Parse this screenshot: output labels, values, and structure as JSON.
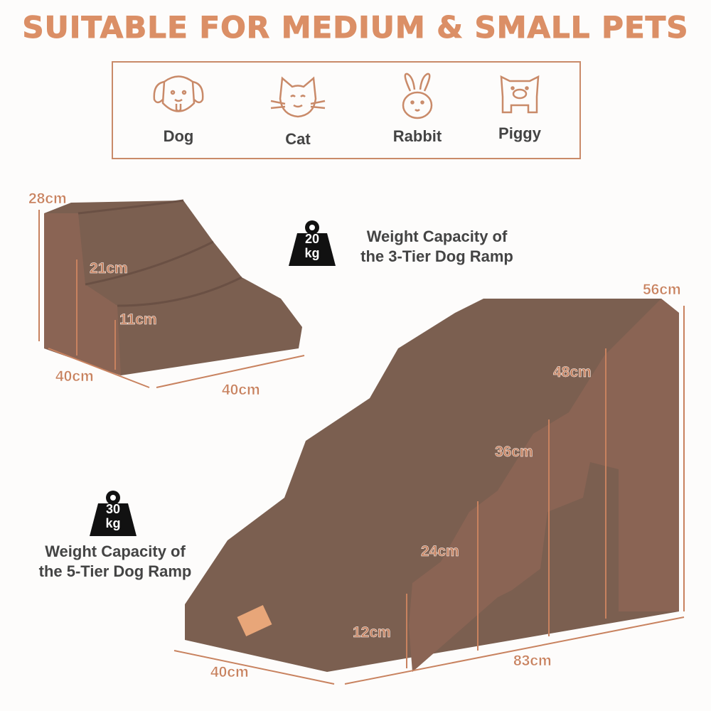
{
  "title": "SUITABLE FOR MEDIUM & SMALL PETS",
  "pets": [
    {
      "label": "Dog",
      "icon": "dog-icon"
    },
    {
      "label": "Cat",
      "icon": "cat-icon"
    },
    {
      "label": "Rabbit",
      "icon": "rabbit-icon"
    },
    {
      "label": "Piggy",
      "icon": "pig-icon"
    }
  ],
  "small_ramp": {
    "height_total": "28cm",
    "step2": "21cm",
    "step1": "11cm",
    "depth": "40cm",
    "width": "40cm",
    "weight": "20",
    "unit": "kg",
    "capacity_line1": "Weight Capacity of",
    "capacity_line2": "the 3-Tier Dog Ramp"
  },
  "large_ramp": {
    "height_total": "56cm",
    "step4": "48cm",
    "step3": "36cm",
    "step2": "24cm",
    "step1": "12cm",
    "depth": "40cm",
    "length": "83cm",
    "weight": "30",
    "unit": "kg",
    "capacity_line1": "Weight Capacity of",
    "capacity_line2": "the 5-Tier Dog Ramp"
  },
  "colors": {
    "accent": "#db8f66",
    "fabric": "#7b5f50",
    "side": "#8a6454",
    "text": "#444444"
  }
}
